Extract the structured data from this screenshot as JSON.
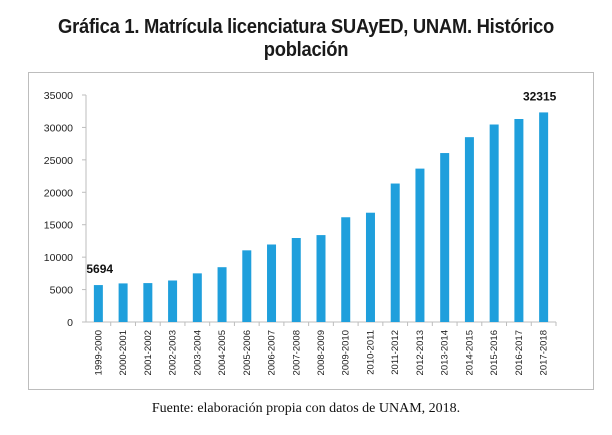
{
  "chart_data": {
    "type": "bar",
    "title": "Gráfica 1. Matrícula licenciatura SUAyED, UNAM. Histórico población",
    "categories": [
      "1999-2000",
      "2000-2001",
      "2001-2002",
      "2002-2003",
      "2003-2004",
      "2004-2005",
      "2005-2006",
      "2006-2007",
      "2007-2008",
      "2008-2009",
      "2009-2010",
      "2010-2011",
      "2011-2012",
      "2012-2013",
      "2013-2014",
      "2014-2015",
      "2015-2016",
      "2016-2017",
      "2017-2018"
    ],
    "values": [
      5694,
      5950,
      6000,
      6400,
      7500,
      8450,
      11050,
      11950,
      12950,
      13400,
      16150,
      16850,
      21350,
      23650,
      26050,
      28500,
      30450,
      31300,
      32315
    ],
    "ylim": [
      0,
      35000
    ],
    "yticks": [
      0,
      5000,
      10000,
      15000,
      20000,
      25000,
      30000,
      35000
    ],
    "data_labels": [
      {
        "index": 0,
        "text": "5694"
      },
      {
        "index": 18,
        "text": "32315"
      }
    ],
    "bar_color": "#1f9fdc",
    "grid": false,
    "xlabel": "",
    "ylabel": ""
  },
  "caption": "Fuente: elaboración propia con datos de UNAM, 2018."
}
